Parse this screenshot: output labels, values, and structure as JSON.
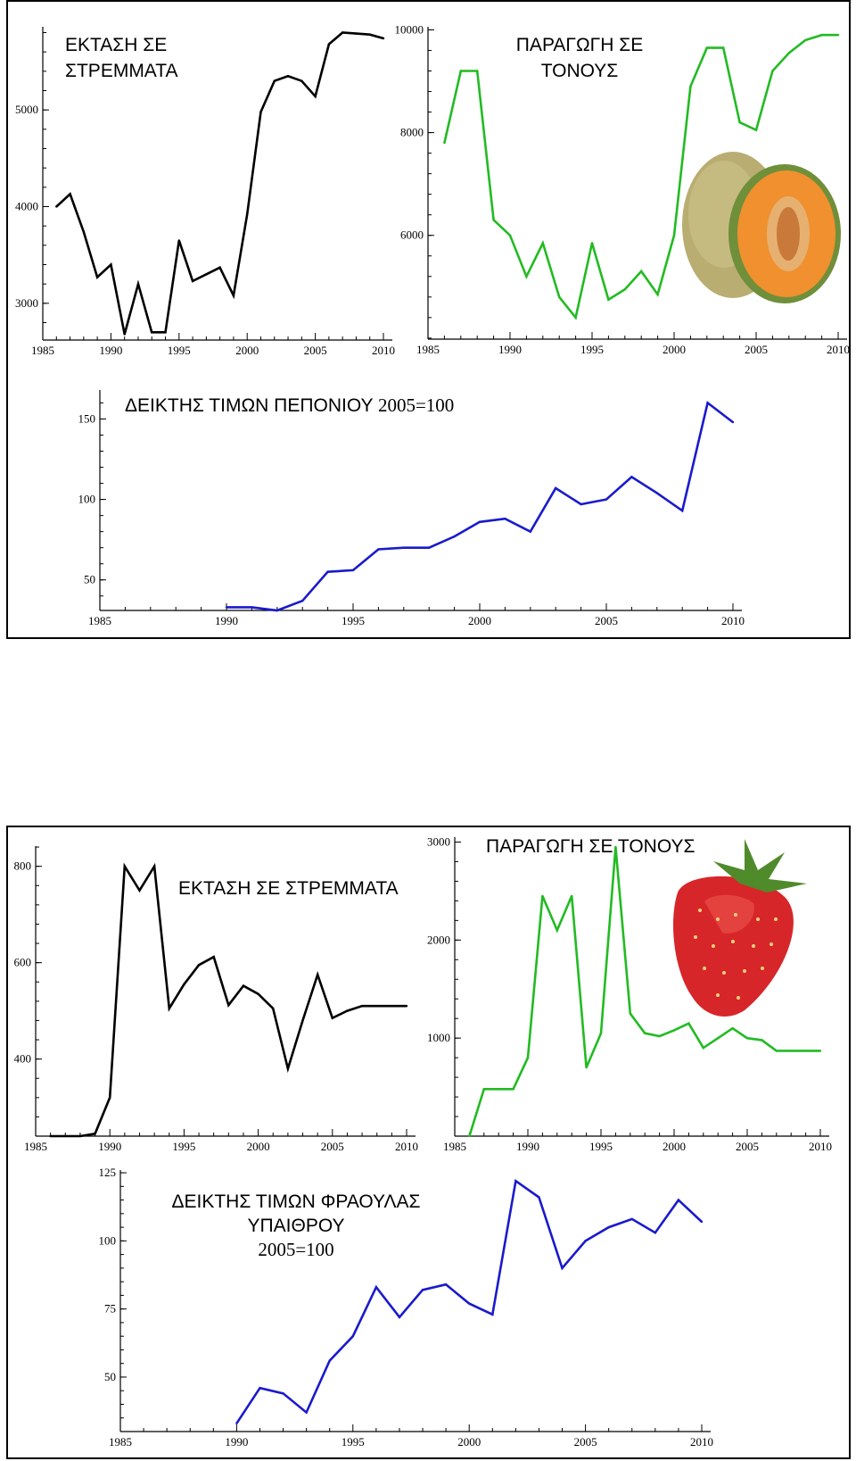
{
  "chart_data": [
    {
      "id": "melon-area",
      "type": "line",
      "title": [
        "ΕΚΤΑΣΗ ΣΕ",
        "ΣΤΡΕΜΜΑΤΑ"
      ],
      "color": "#000000",
      "x": [
        1986,
        1987,
        1988,
        1989,
        1990,
        1991,
        1992,
        1993,
        1994,
        1995,
        1996,
        1997,
        1998,
        1999,
        2000,
        2001,
        2002,
        2003,
        2004,
        2005,
        2006,
        2007,
        2008,
        2009,
        2010
      ],
      "y": [
        4000,
        4130,
        3740,
        3270,
        3400,
        2680,
        3200,
        2700,
        2700,
        3650,
        3230,
        3300,
        3370,
        3080,
        3920,
        4980,
        5300,
        5350,
        5300,
        5140,
        5680,
        5800,
        5790,
        5780,
        5740
      ],
      "xticks": [
        1985,
        1990,
        1995,
        2000,
        2005,
        2010
      ],
      "yticks": [
        3000,
        4000,
        5000
      ],
      "xlim": [
        1985,
        2010
      ],
      "ylim": [
        2620,
        5860
      ]
    },
    {
      "id": "melon-production",
      "type": "line",
      "title": [
        "ΠΑΡΑΓΩΓΗ ΣΕ",
        "ΤΟΝΟΥΣ"
      ],
      "color": "#22bb22",
      "x": [
        1986,
        1987,
        1988,
        1989,
        1990,
        1991,
        1992,
        1993,
        1994,
        1995,
        1996,
        1997,
        1998,
        1999,
        2000,
        2001,
        2002,
        2003,
        2004,
        2005,
        2006,
        2007,
        2008,
        2009,
        2010
      ],
      "y": [
        7800,
        9200,
        9200,
        6300,
        6000,
        5200,
        5850,
        4800,
        4400,
        5850,
        4750,
        4950,
        5300,
        4850,
        6000,
        8900,
        9650,
        9650,
        8200,
        8050,
        9200,
        9550,
        9800,
        9900,
        9900
      ],
      "xticks": [
        1985,
        1990,
        1995,
        2000,
        2005,
        2010
      ],
      "yticks": [
        6000,
        8000,
        10000
      ],
      "xlim": [
        1985,
        2010
      ],
      "ylim": [
        3980,
        10060
      ]
    },
    {
      "id": "melon-price-index",
      "type": "line",
      "title": [
        "ΔΕΙΚΤΗΣ ΤΙΜΩΝ ΠΕΠΟΝΙΟΥ ",
        "2005=100"
      ],
      "color": "#1a1acc",
      "x": [
        1990,
        1991,
        1992,
        1993,
        1994,
        1995,
        1996,
        1997,
        1998,
        1999,
        2000,
        2001,
        2002,
        2003,
        2004,
        2005,
        2006,
        2007,
        2008,
        2009,
        2010
      ],
      "y": [
        33,
        33,
        31,
        37,
        55,
        56,
        69,
        70,
        70,
        77,
        86,
        88,
        80,
        107,
        97,
        100,
        114,
        104,
        93,
        160,
        148
      ],
      "xticks": [
        1985,
        1990,
        1995,
        2000,
        2005,
        2010
      ],
      "yticks": [
        50,
        100,
        150
      ],
      "xlim": [
        1985,
        2010
      ],
      "ylim": [
        31,
        168
      ]
    },
    {
      "id": "strawberry-area",
      "type": "line",
      "title": [
        "ΕΚΤΑΣΗ ΣΕ ΣΤΡΕΜΜΑΤΑ"
      ],
      "color": "#000000",
      "x": [
        1986,
        1987,
        1988,
        1989,
        1990,
        1991,
        1992,
        1993,
        1994,
        1995,
        1996,
        1997,
        1998,
        1999,
        2000,
        2001,
        2002,
        2003,
        2004,
        2005,
        2006,
        2007,
        2008,
        2009,
        2010
      ],
      "y": [
        240,
        240,
        240,
        245,
        320,
        800,
        750,
        800,
        505,
        555,
        595,
        612,
        512,
        552,
        535,
        505,
        380,
        480,
        575,
        485,
        500,
        510,
        510,
        510,
        510
      ],
      "xticks": [
        1985,
        1990,
        1995,
        2000,
        2005,
        2010
      ],
      "yticks": [
        400,
        600,
        800
      ],
      "xlim": [
        1985,
        2010
      ],
      "ylim": [
        240,
        842
      ]
    },
    {
      "id": "strawberry-production",
      "type": "line",
      "title": [
        "ΠΑΡΑΓΩΓΗ ΣΕ ΤΟΝΟΥΣ"
      ],
      "color": "#22bb22",
      "x": [
        1986,
        1987,
        1988,
        1989,
        1990,
        1991,
        1992,
        1993,
        1994,
        1995,
        1996,
        1997,
        1998,
        1999,
        2000,
        2001,
        2002,
        2003,
        2004,
        2005,
        2006,
        2007,
        2008,
        2009,
        2010
      ],
      "y": [
        0,
        480,
        480,
        480,
        800,
        2450,
        2100,
        2450,
        700,
        1050,
        2950,
        1250,
        1050,
        1020,
        1080,
        1150,
        900,
        1000,
        1100,
        1000,
        980,
        870,
        870,
        870,
        870
      ],
      "xticks": [
        1985,
        1990,
        1995,
        2000,
        2005,
        2010
      ],
      "yticks": [
        1000,
        2000,
        3000
      ],
      "xlim": [
        1985,
        2010
      ],
      "ylim": [
        0,
        3050
      ]
    },
    {
      "id": "strawberry-price-index",
      "type": "line",
      "title": [
        "ΔΕΙΚΤΗΣ ΤΙΜΩΝ ΦΡΑΟΥΛΑΣ",
        "ΥΠΑΙΘΡΟΥ",
        "2005=100"
      ],
      "color": "#1a1acc",
      "x": [
        1990,
        1991,
        1992,
        1993,
        1994,
        1995,
        1996,
        1997,
        1998,
        1999,
        2000,
        2001,
        2002,
        2003,
        2004,
        2005,
        2006,
        2007,
        2008,
        2009,
        2010
      ],
      "y": [
        33,
        46,
        44,
        37,
        56,
        65,
        83,
        72,
        82,
        84,
        77,
        73,
        122,
        116,
        90,
        100,
        105,
        108,
        103,
        115,
        107
      ],
      "xticks": [
        1985,
        1990,
        1995,
        2000,
        2005,
        2010
      ],
      "yticks": [
        50,
        75,
        100,
        125
      ],
      "xlim": [
        1985,
        2010
      ],
      "ylim": [
        30,
        126
      ]
    }
  ]
}
